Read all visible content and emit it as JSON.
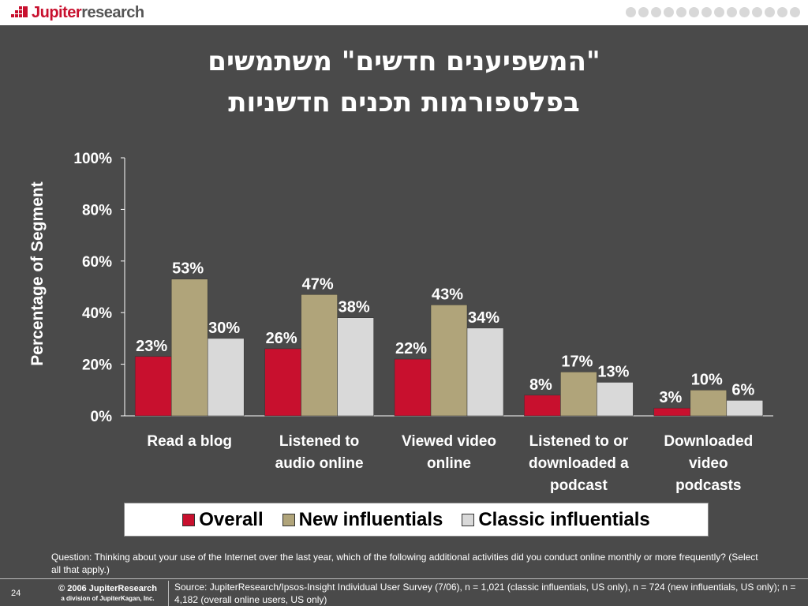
{
  "header": {
    "logo_text_red": "Jupiter",
    "logo_text_gray": "research",
    "logo_icon": "jupiter-grid-icon"
  },
  "slide": {
    "title_line1": "\"המשפיענים חדשים\" משתמשים",
    "title_line2": "בפלטפורמות תכנים חדשניות"
  },
  "chart_data": {
    "type": "bar",
    "ylabel": "Percentage of Segment",
    "ylim": [
      0,
      100
    ],
    "y_ticks": [
      0,
      20,
      40,
      60,
      80,
      100
    ],
    "y_tick_labels": [
      "0%",
      "20%",
      "40%",
      "60%",
      "80%",
      "100%"
    ],
    "categories": [
      [
        "Read a blog"
      ],
      [
        "Listened to",
        "audio online"
      ],
      [
        "Viewed video",
        "online"
      ],
      [
        "Listened to or",
        "downloaded a",
        "podcast"
      ],
      [
        "Downloaded",
        "video",
        "podcasts"
      ]
    ],
    "series": [
      {
        "name": "Overall",
        "color": "#c8102e",
        "values": [
          23,
          26,
          22,
          8,
          3
        ],
        "labels": [
          "23%",
          "26%",
          "22%",
          "8%",
          "3%"
        ]
      },
      {
        "name": "New influentials",
        "color": "#b0a47a",
        "values": [
          53,
          47,
          43,
          17,
          10
        ],
        "labels": [
          "53%",
          "47%",
          "43%",
          "17%",
          "10%"
        ]
      },
      {
        "name": "Classic influentials",
        "color": "#d9d9d9",
        "values": [
          30,
          38,
          34,
          13,
          6
        ],
        "labels": [
          "30%",
          "38%",
          "34%",
          "13%",
          "6%"
        ]
      }
    ],
    "grid": false,
    "legend_position": "bottom"
  },
  "footer": {
    "question": "Question: Thinking about your use of the Internet over the last year, which of the following additional activities did you conduct online monthly or more frequently? (Select all that apply.)",
    "page_number": "24",
    "copyright_line1": "© 2006 JupiterResearch",
    "copyright_line2": "a division of JupiterKagan, Inc.",
    "source": "Source: JupiterResearch/Ipsos-Insight Individual User Survey (7/06), n = 1,021 (classic influentials, US only), n = 724 (new influentials, US only); n = 4,182 (overall online users, US only)"
  }
}
